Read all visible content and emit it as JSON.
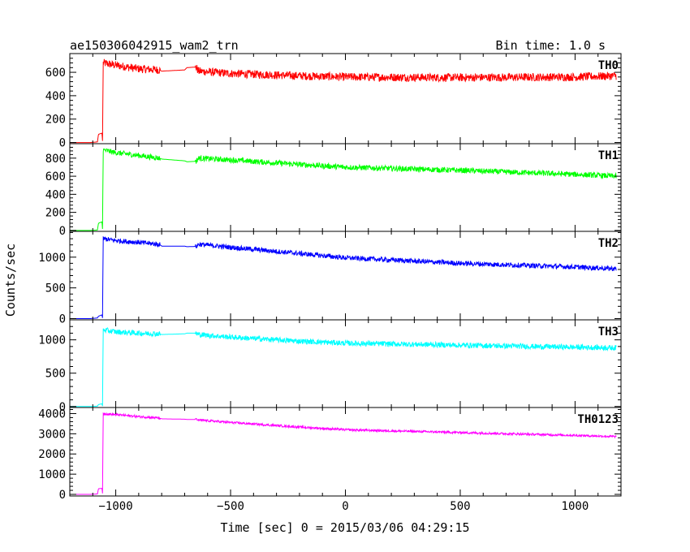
{
  "chart_data": {
    "type": "line",
    "title": "ae150306042915_wam2_trn",
    "bin_time": "Bin time: 1.0 s",
    "xlabel": "Time [sec] 0 = 2015/03/06 04:29:15",
    "ylabel": "Counts/sec",
    "xlim": [
      -1200,
      1200
    ],
    "xticks": [
      -1000,
      -500,
      0,
      500,
      1000
    ],
    "xtick_labels": [
      "−1000",
      "−500",
      "0",
      "500",
      "1000"
    ],
    "panels": [
      {
        "name": "TH0",
        "color": "#ff0000",
        "ylim": [
          -10,
          760
        ],
        "yticks": [
          0,
          200,
          400,
          600
        ],
        "ytick_labels": [
          "0",
          "200",
          "400",
          "600"
        ],
        "noise": 35,
        "points": [
          [
            -1200,
            0
          ],
          [
            -1110,
            0
          ],
          [
            -1080,
            5
          ],
          [
            -1075,
            70
          ],
          [
            -1060,
            80
          ],
          [
            -1057,
            0
          ],
          [
            -1055,
            680
          ],
          [
            -1000,
            660
          ],
          [
            -900,
            630
          ],
          [
            -810,
            620
          ],
          [
            -800,
            610
          ],
          [
            -700,
            620
          ],
          [
            -690,
            640
          ],
          [
            -650,
            645
          ],
          [
            -640,
            610
          ],
          [
            -500,
            590
          ],
          [
            -200,
            570
          ],
          [
            0,
            560
          ],
          [
            500,
            555
          ],
          [
            1000,
            560
          ],
          [
            1180,
            570
          ]
        ]
      },
      {
        "name": "TH1",
        "color": "#00ff00",
        "ylim": [
          -10,
          960
        ],
        "yticks": [
          0,
          200,
          400,
          600,
          800
        ],
        "ytick_labels": [
          "0",
          "200",
          "400",
          "600",
          "800"
        ],
        "noise": 30,
        "points": [
          [
            -1200,
            0
          ],
          [
            -1110,
            0
          ],
          [
            -1080,
            5
          ],
          [
            -1075,
            80
          ],
          [
            -1060,
            95
          ],
          [
            -1057,
            0
          ],
          [
            -1055,
            890
          ],
          [
            -1000,
            860
          ],
          [
            -900,
            830
          ],
          [
            -810,
            800
          ],
          [
            -800,
            790
          ],
          [
            -700,
            770
          ],
          [
            -690,
            760
          ],
          [
            -650,
            765
          ],
          [
            -640,
            800
          ],
          [
            -500,
            780
          ],
          [
            -200,
            730
          ],
          [
            0,
            700
          ],
          [
            500,
            665
          ],
          [
            1000,
            620
          ],
          [
            1180,
            600
          ]
        ]
      },
      {
        "name": "TH2",
        "color": "#0000ff",
        "ylim": [
          -20,
          1420
        ],
        "yticks": [
          0,
          500,
          1000
        ],
        "ytick_labels": [
          "0",
          "500",
          "1000"
        ],
        "noise": 40,
        "points": [
          [
            -1200,
            0
          ],
          [
            -1110,
            0
          ],
          [
            -1080,
            10
          ],
          [
            -1075,
            40
          ],
          [
            -1060,
            60
          ],
          [
            -1057,
            0
          ],
          [
            -1055,
            1300
          ],
          [
            -1000,
            1270
          ],
          [
            -900,
            1240
          ],
          [
            -810,
            1210
          ],
          [
            -800,
            1180
          ],
          [
            -700,
            1180
          ],
          [
            -690,
            1170
          ],
          [
            -650,
            1175
          ],
          [
            -640,
            1210
          ],
          [
            -500,
            1160
          ],
          [
            -200,
            1060
          ],
          [
            0,
            990
          ],
          [
            500,
            900
          ],
          [
            1000,
            840
          ],
          [
            1180,
            810
          ]
        ]
      },
      {
        "name": "TH3",
        "color": "#00ffff",
        "ylim": [
          -15,
          1300
        ],
        "yticks": [
          0,
          500,
          1000
        ],
        "ytick_labels": [
          "0",
          "500",
          "1000"
        ],
        "noise": 40,
        "points": [
          [
            -1200,
            0
          ],
          [
            -1110,
            0
          ],
          [
            -1080,
            5
          ],
          [
            -1075,
            30
          ],
          [
            -1060,
            40
          ],
          [
            -1057,
            0
          ],
          [
            -1055,
            1150
          ],
          [
            -1000,
            1120
          ],
          [
            -900,
            1100
          ],
          [
            -810,
            1090
          ],
          [
            -800,
            1080
          ],
          [
            -700,
            1090
          ],
          [
            -690,
            1100
          ],
          [
            -650,
            1100
          ],
          [
            -640,
            1080
          ],
          [
            -500,
            1040
          ],
          [
            -200,
            980
          ],
          [
            0,
            950
          ],
          [
            500,
            920
          ],
          [
            1000,
            890
          ],
          [
            1180,
            880
          ]
        ]
      },
      {
        "name": "TH0123",
        "color": "#ff00ff",
        "ylim": [
          -80,
          4300
        ],
        "yticks": [
          0,
          1000,
          2000,
          3000,
          4000
        ],
        "ytick_labels": [
          "0",
          "1000",
          "2000",
          "3000",
          "4000"
        ],
        "noise": 55,
        "points": [
          [
            -1200,
            0
          ],
          [
            -1110,
            0
          ],
          [
            -1080,
            20
          ],
          [
            -1075,
            280
          ],
          [
            -1060,
            300
          ],
          [
            -1057,
            0
          ],
          [
            -1055,
            4000
          ],
          [
            -1000,
            3950
          ],
          [
            -900,
            3850
          ],
          [
            -810,
            3780
          ],
          [
            -800,
            3740
          ],
          [
            -700,
            3720
          ],
          [
            -690,
            3710
          ],
          [
            -650,
            3710
          ],
          [
            -640,
            3680
          ],
          [
            -500,
            3560
          ],
          [
            -200,
            3330
          ],
          [
            0,
            3200
          ],
          [
            500,
            3060
          ],
          [
            1000,
            2920
          ],
          [
            1180,
            2860
          ]
        ]
      }
    ],
    "gaps": [
      [
        -806,
        -653
      ]
    ]
  }
}
